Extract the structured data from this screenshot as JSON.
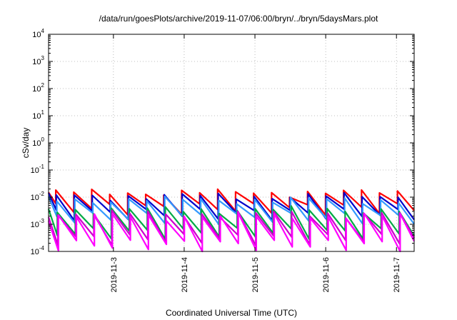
{
  "chart_data": {
    "type": "line",
    "title": "/data/run/goesPlots/archive/2019-11-07/06:00/bryn/../bryn/5daysMars.plot",
    "xlabel": "Coordinated Universal Time (UTC)",
    "ylabel": "cSv/day",
    "yscale": "log",
    "ylim": [
      0.0001,
      10000
    ],
    "xlim": [
      "2019-11-02T02:00",
      "2019-11-07T06:00"
    ],
    "grid": true,
    "y_ticks": [
      {
        "base": "10",
        "exp": "4"
      },
      {
        "base": "10",
        "exp": "3"
      },
      {
        "base": "10",
        "exp": "2"
      },
      {
        "base": "10",
        "exp": "1"
      },
      {
        "base": "10",
        "exp": "0"
      },
      {
        "base": "10",
        "exp": "-1"
      },
      {
        "base": "10",
        "exp": "-2"
      },
      {
        "base": "10",
        "exp": "-3"
      },
      {
        "base": "10",
        "exp": "-4"
      }
    ],
    "x_ticks": [
      "2019-11-3",
      "2019-11-4",
      "2019-11-5",
      "2019-11-6",
      "2019-11-7"
    ],
    "sawtooth_period_hours": 6.1,
    "series": [
      {
        "color": "#ff0000",
        "peak": 0.015,
        "trough": 0.004
      },
      {
        "color": "#0000cc",
        "peak": 0.011,
        "trough": 0.0025
      },
      {
        "color": "#3399ff",
        "peak": 0.008,
        "trough": 0.0018
      },
      {
        "color": "#00aa44",
        "peak": 0.0035,
        "trough": 0.0005
      },
      {
        "color": "#cc00cc",
        "peak": 0.0025,
        "trough": 0.0003
      },
      {
        "color": "#ff00ff",
        "peak": 0.002,
        "trough": 0.00018
      }
    ]
  }
}
